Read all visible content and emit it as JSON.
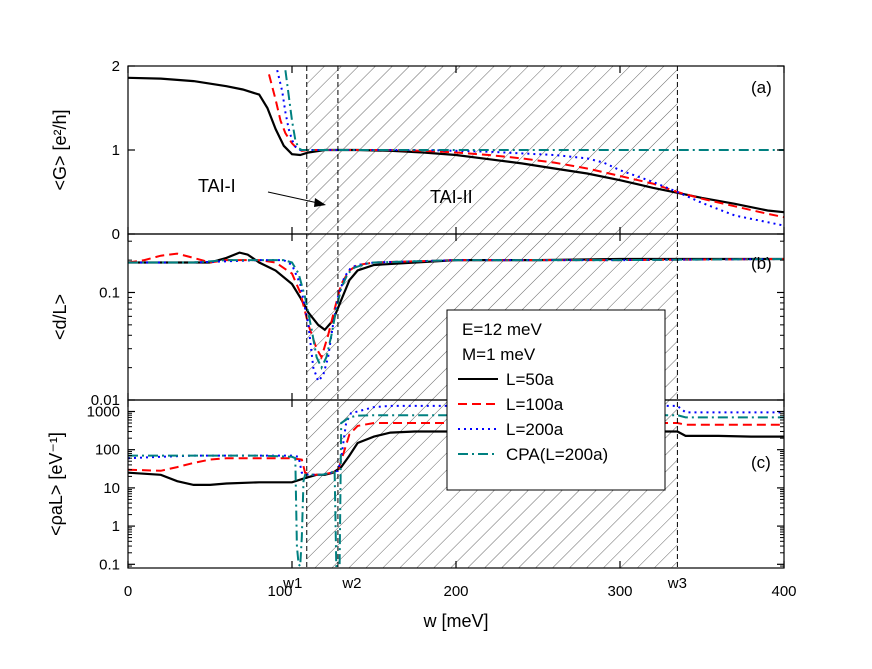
{
  "chart_data": {
    "type": "line",
    "xlabel": "w [meV]",
    "xlim": [
      0,
      400
    ],
    "x_ticks": [
      "0",
      "100",
      "200",
      "300",
      "400"
    ],
    "x_markers": [
      {
        "label": "w1",
        "x": 109
      },
      {
        "label": "w2",
        "x": 128
      },
      {
        "label": "w3",
        "x": 335
      }
    ],
    "shaded_regions": [
      {
        "name": "TAI-I",
        "from": 109,
        "to": 128
      },
      {
        "name": "TAI-II",
        "from": 128,
        "to": 335
      }
    ],
    "annotations": {
      "tai1": "TAI-I",
      "tai2": "TAI-II"
    },
    "legend": {
      "placement": "center-right",
      "header": [
        "E=12 meV",
        "M=1 meV"
      ]
    },
    "series_styles": [
      {
        "name": "L=50a",
        "color": "#000000",
        "dash": "solid"
      },
      {
        "name": "L=100a",
        "color": "#ff0000",
        "dash": "dashed"
      },
      {
        "name": "L=200a",
        "color": "#0000ff",
        "dash": "dotted"
      },
      {
        "name": "CPA(L=200a)",
        "color": "#008080",
        "dash": "dashdot"
      }
    ],
    "panels": [
      {
        "id": "a",
        "label": "(a)",
        "ylabel": "<G> [e²/h]",
        "yscale": "linear",
        "ylim": [
          0,
          2
        ],
        "y_ticks": [
          "0",
          "1",
          "2"
        ],
        "series": [
          {
            "name": "L=50a",
            "x": [
              0,
              20,
              40,
              60,
              70,
              80,
              85,
              90,
              95,
              100,
              105,
              110,
              120,
              140,
              160,
              180,
              200,
              220,
              240,
              260,
              280,
              300,
              320,
              335,
              350,
              370,
              390,
              400
            ],
            "y": [
              1.86,
              1.85,
              1.82,
              1.76,
              1.72,
              1.66,
              1.5,
              1.25,
              1.05,
              0.95,
              0.94,
              0.97,
              1.0,
              1.0,
              0.99,
              0.97,
              0.94,
              0.89,
              0.84,
              0.78,
              0.72,
              0.64,
              0.55,
              0.49,
              0.43,
              0.36,
              0.28,
              0.26
            ]
          },
          {
            "name": "L=100a",
            "x": [
              86,
              90,
              93,
              96,
              100,
              103,
              106,
              110,
              120,
              140,
              160,
              180,
              200,
              220,
              240,
              260,
              280,
              300,
              320,
              335,
              350,
              370,
              390,
              400
            ],
            "y": [
              1.9,
              1.6,
              1.35,
              1.2,
              1.08,
              1.02,
              0.99,
              1.0,
              1.0,
              1.0,
              1.0,
              0.99,
              0.97,
              0.94,
              0.9,
              0.85,
              0.78,
              0.69,
              0.6,
              0.5,
              0.42,
              0.33,
              0.24,
              0.2
            ]
          },
          {
            "name": "L=200a",
            "x": [
              91,
              94,
              96,
              98,
              100,
              102,
              105,
              110,
              120,
              140,
              160,
              180,
              200,
              220,
              240,
              260,
              280,
              290,
              300,
              320,
              335,
              350,
              370,
              390,
              400
            ],
            "y": [
              1.95,
              1.7,
              1.45,
              1.25,
              1.12,
              1.04,
              1.0,
              1.0,
              1.0,
              1.0,
              1.0,
              1.0,
              0.99,
              0.98,
              0.96,
              0.94,
              0.9,
              0.85,
              0.76,
              0.62,
              0.5,
              0.37,
              0.22,
              0.14,
              0.1
            ]
          },
          {
            "name": "CPA(L=200a)",
            "x": [
              96,
              98,
              100,
              102,
              104,
              106,
              110,
              150,
              200,
              250,
              300,
              350,
              400
            ],
            "y": [
              1.95,
              1.65,
              1.35,
              1.12,
              1.02,
              1.0,
              1.0,
              1.0,
              1.0,
              1.0,
              1.0,
              1.0,
              1.0
            ]
          }
        ]
      },
      {
        "id": "b",
        "label": "(b)",
        "ylabel": "<d/L>",
        "yscale": "log",
        "ylim": [
          0.01,
          0.35
        ],
        "y_ticks": [
          "0.01",
          "0.1"
        ],
        "series": [
          {
            "name": "L=50a",
            "x": [
              0,
              20,
              40,
              50,
              60,
              68,
              73,
              80,
              90,
              100,
              105,
              110,
              116,
              120,
              125,
              130,
              135,
              140,
              150,
              175,
              200,
              250,
              300,
              350,
              400
            ],
            "y": [
              0.19,
              0.19,
              0.19,
              0.19,
              0.21,
              0.235,
              0.225,
              0.19,
              0.16,
              0.12,
              0.09,
              0.065,
              0.05,
              0.045,
              0.055,
              0.085,
              0.13,
              0.16,
              0.18,
              0.19,
              0.2,
              0.2,
              0.205,
              0.205,
              0.205
            ]
          },
          {
            "name": "L=100a",
            "x": [
              0,
              10,
              20,
              30,
              40,
              50,
              60,
              70,
              80,
              90,
              100,
              105,
              110,
              115,
              118,
              122,
              126,
              130,
              135,
              140,
              150,
              200,
              300,
              400
            ],
            "y": [
              0.19,
              0.2,
              0.22,
              0.23,
              0.21,
              0.19,
              0.2,
              0.2,
              0.2,
              0.19,
              0.15,
              0.1,
              0.05,
              0.03,
              0.025,
              0.04,
              0.07,
              0.12,
              0.16,
              0.18,
              0.19,
              0.2,
              0.2,
              0.205
            ]
          },
          {
            "name": "L=200a",
            "x": [
              0,
              20,
              40,
              60,
              80,
              95,
              100,
              105,
              110,
              113,
              116,
              119,
              122,
              125,
              128,
              132,
              136,
              140,
              150,
              200,
              300,
              400
            ],
            "y": [
              0.19,
              0.19,
              0.19,
              0.195,
              0.2,
              0.2,
              0.18,
              0.12,
              0.05,
              0.02,
              0.015,
              0.017,
              0.025,
              0.05,
              0.09,
              0.14,
              0.17,
              0.18,
              0.19,
              0.2,
              0.2,
              0.205
            ]
          },
          {
            "name": "CPA(L=200a)",
            "x": [
              0,
              20,
              40,
              60,
              80,
              95,
              100,
              104,
              108,
              112,
              115,
              118,
              121,
              124,
              127,
              130,
              134,
              138,
              145,
              150,
              200,
              300,
              400
            ],
            "y": [
              0.19,
              0.19,
              0.19,
              0.2,
              0.2,
              0.2,
              0.19,
              0.15,
              0.09,
              0.045,
              0.025,
              0.02,
              0.025,
              0.04,
              0.07,
              0.11,
              0.15,
              0.17,
              0.185,
              0.19,
              0.2,
              0.2,
              0.205
            ]
          }
        ]
      },
      {
        "id": "c",
        "label": "(c)",
        "ylabel": "<ρaL> [eV⁻¹]",
        "yscale": "log",
        "ylim": [
          0.08,
          2000
        ],
        "y_ticks": [
          "0.1",
          "1",
          "10",
          "100",
          "1000"
        ],
        "series": [
          {
            "name": "L=50a",
            "x": [
              0,
              20,
              30,
              40,
              50,
              60,
              80,
              100,
              108,
              115,
              120,
              125,
              130,
              135,
              140,
              150,
              160,
              175,
              200,
              250,
              300,
              320,
              335,
              340,
              360,
              380,
              400
            ],
            "y": [
              25,
              22,
              15,
              12,
              12,
              13,
              14,
              14,
              18,
              22,
              22,
              25,
              35,
              70,
              150,
              220,
              280,
              300,
              300,
              300,
              300,
              300,
              300,
              230,
              230,
              220,
              220
            ]
          },
          {
            "name": "L=100a",
            "x": [
              0,
              20,
              30,
              40,
              50,
              60,
              80,
              100,
              106,
              108,
              112,
              118,
              124,
              128,
              131,
              135,
              140,
              150,
              160,
              175,
              200,
              250,
              300,
              320,
              335,
              340,
              360,
              380,
              400
            ],
            "y": [
              30,
              28,
              35,
              45,
              55,
              60,
              60,
              60,
              55,
              25,
              22,
              22,
              25,
              28,
              70,
              250,
              420,
              500,
              500,
              500,
              500,
              500,
              500,
              500,
              500,
              450,
              450,
              450,
              450
            ]
          },
          {
            "name": "L=200a",
            "x": [
              0,
              20,
              40,
              60,
              80,
              100,
              104,
              106,
              110,
              118,
              124,
              128,
              130,
              133,
              136,
              140,
              150,
              160,
              175,
              200,
              250,
              300,
              320,
              335,
              340,
              360,
              380,
              400
            ],
            "y": [
              60,
              65,
              70,
              70,
              70,
              70,
              65,
              25,
              22,
              22,
              25,
              28,
              60,
              500,
              900,
              1000,
              1300,
              1400,
              1400,
              1400,
              1400,
              1400,
              1400,
              1400,
              950,
              950,
              950,
              950
            ]
          },
          {
            "name": "CPA(L=200a)",
            "x": [
              0,
              20,
              40,
              60,
              80,
              100,
              102,
              103,
              104,
              105,
              106,
              107,
              108,
              110,
              118,
              124,
              126,
              127,
              128,
              129,
              130,
              135,
              140,
              150,
              200,
              250,
              300,
              335,
              340,
              360,
              380,
              400
            ],
            "y": [
              70,
              70,
              70,
              70,
              70,
              65,
              60,
              0.3,
              0.1,
              0.09,
              0.5,
              15,
              22,
              22,
              22,
              25,
              30,
              0.09,
              0.09,
              0.09,
              500,
              700,
              780,
              800,
              800,
              800,
              800,
              800,
              700,
              700,
              700,
              700
            ]
          }
        ]
      }
    ]
  }
}
